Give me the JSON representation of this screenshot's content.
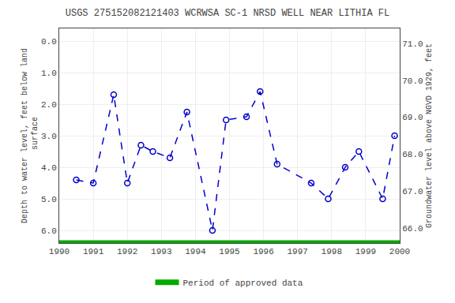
{
  "chart_data": {
    "type": "line",
    "title": "USGS 275152082121403 WCRWSA SC-1 NRSD WELL NEAR LITHIA FL",
    "ylabel": "Depth to water level, feet below land\n surface",
    "y2label": "Groundwater level above NGVD 1929, feet",
    "x": [
      1990.5,
      1991.0,
      1991.6,
      1992.0,
      1992.4,
      1992.75,
      1993.25,
      1993.75,
      1994.5,
      1994.9,
      1995.5,
      1995.9,
      1996.4,
      1997.4,
      1997.9,
      1998.4,
      1998.8,
      1999.5,
      1999.85
    ],
    "series": [
      {
        "color": "#0000cc",
        "marker": "open_circle",
        "line_style": "dashed",
        "values": [
          4.4,
          4.5,
          1.7,
          4.5,
          3.3,
          3.5,
          3.7,
          2.25,
          6.0,
          2.5,
          2.4,
          1.6,
          3.9,
          4.5,
          5.0,
          4.0,
          3.5,
          5.0,
          3.0
        ]
      },
      {
        "name": "Period of approved data",
        "color": "#00aa00",
        "line_style": "solid",
        "x": [
          1990,
          2000
        ],
        "values": [
          6.4,
          6.4
        ]
      }
    ],
    "xlim": [
      1990,
      2000
    ],
    "xticks": [
      1990,
      1991,
      1992,
      1993,
      1994,
      1995,
      1996,
      1997,
      1998,
      1999,
      2000
    ],
    "ylim": [
      6.4,
      -0.4
    ],
    "yticks": [
      {
        "value": 0.0,
        "label": "0.0"
      },
      {
        "value": 1.0,
        "label": "1.0"
      },
      {
        "value": 2.0,
        "label": "2.0"
      },
      {
        "value": 3.0,
        "label": "3.0"
      },
      {
        "value": 4.0,
        "label": "4.0"
      },
      {
        "value": 5.0,
        "label": "5.0"
      },
      {
        "value": 6.0,
        "label": "6.0"
      }
    ],
    "y2lim": [
      65.6,
      71.4
    ],
    "y2ticks": [
      {
        "value": 66.0,
        "label": "66.0"
      },
      {
        "value": 67.0,
        "label": "67.0"
      },
      {
        "value": 68.0,
        "label": "68.0"
      },
      {
        "value": 69.0,
        "label": "69.0"
      },
      {
        "value": 70.0,
        "label": "70.0"
      },
      {
        "value": 71.0,
        "label": "71.0"
      }
    ],
    "grid": true,
    "legend": "bottom"
  }
}
